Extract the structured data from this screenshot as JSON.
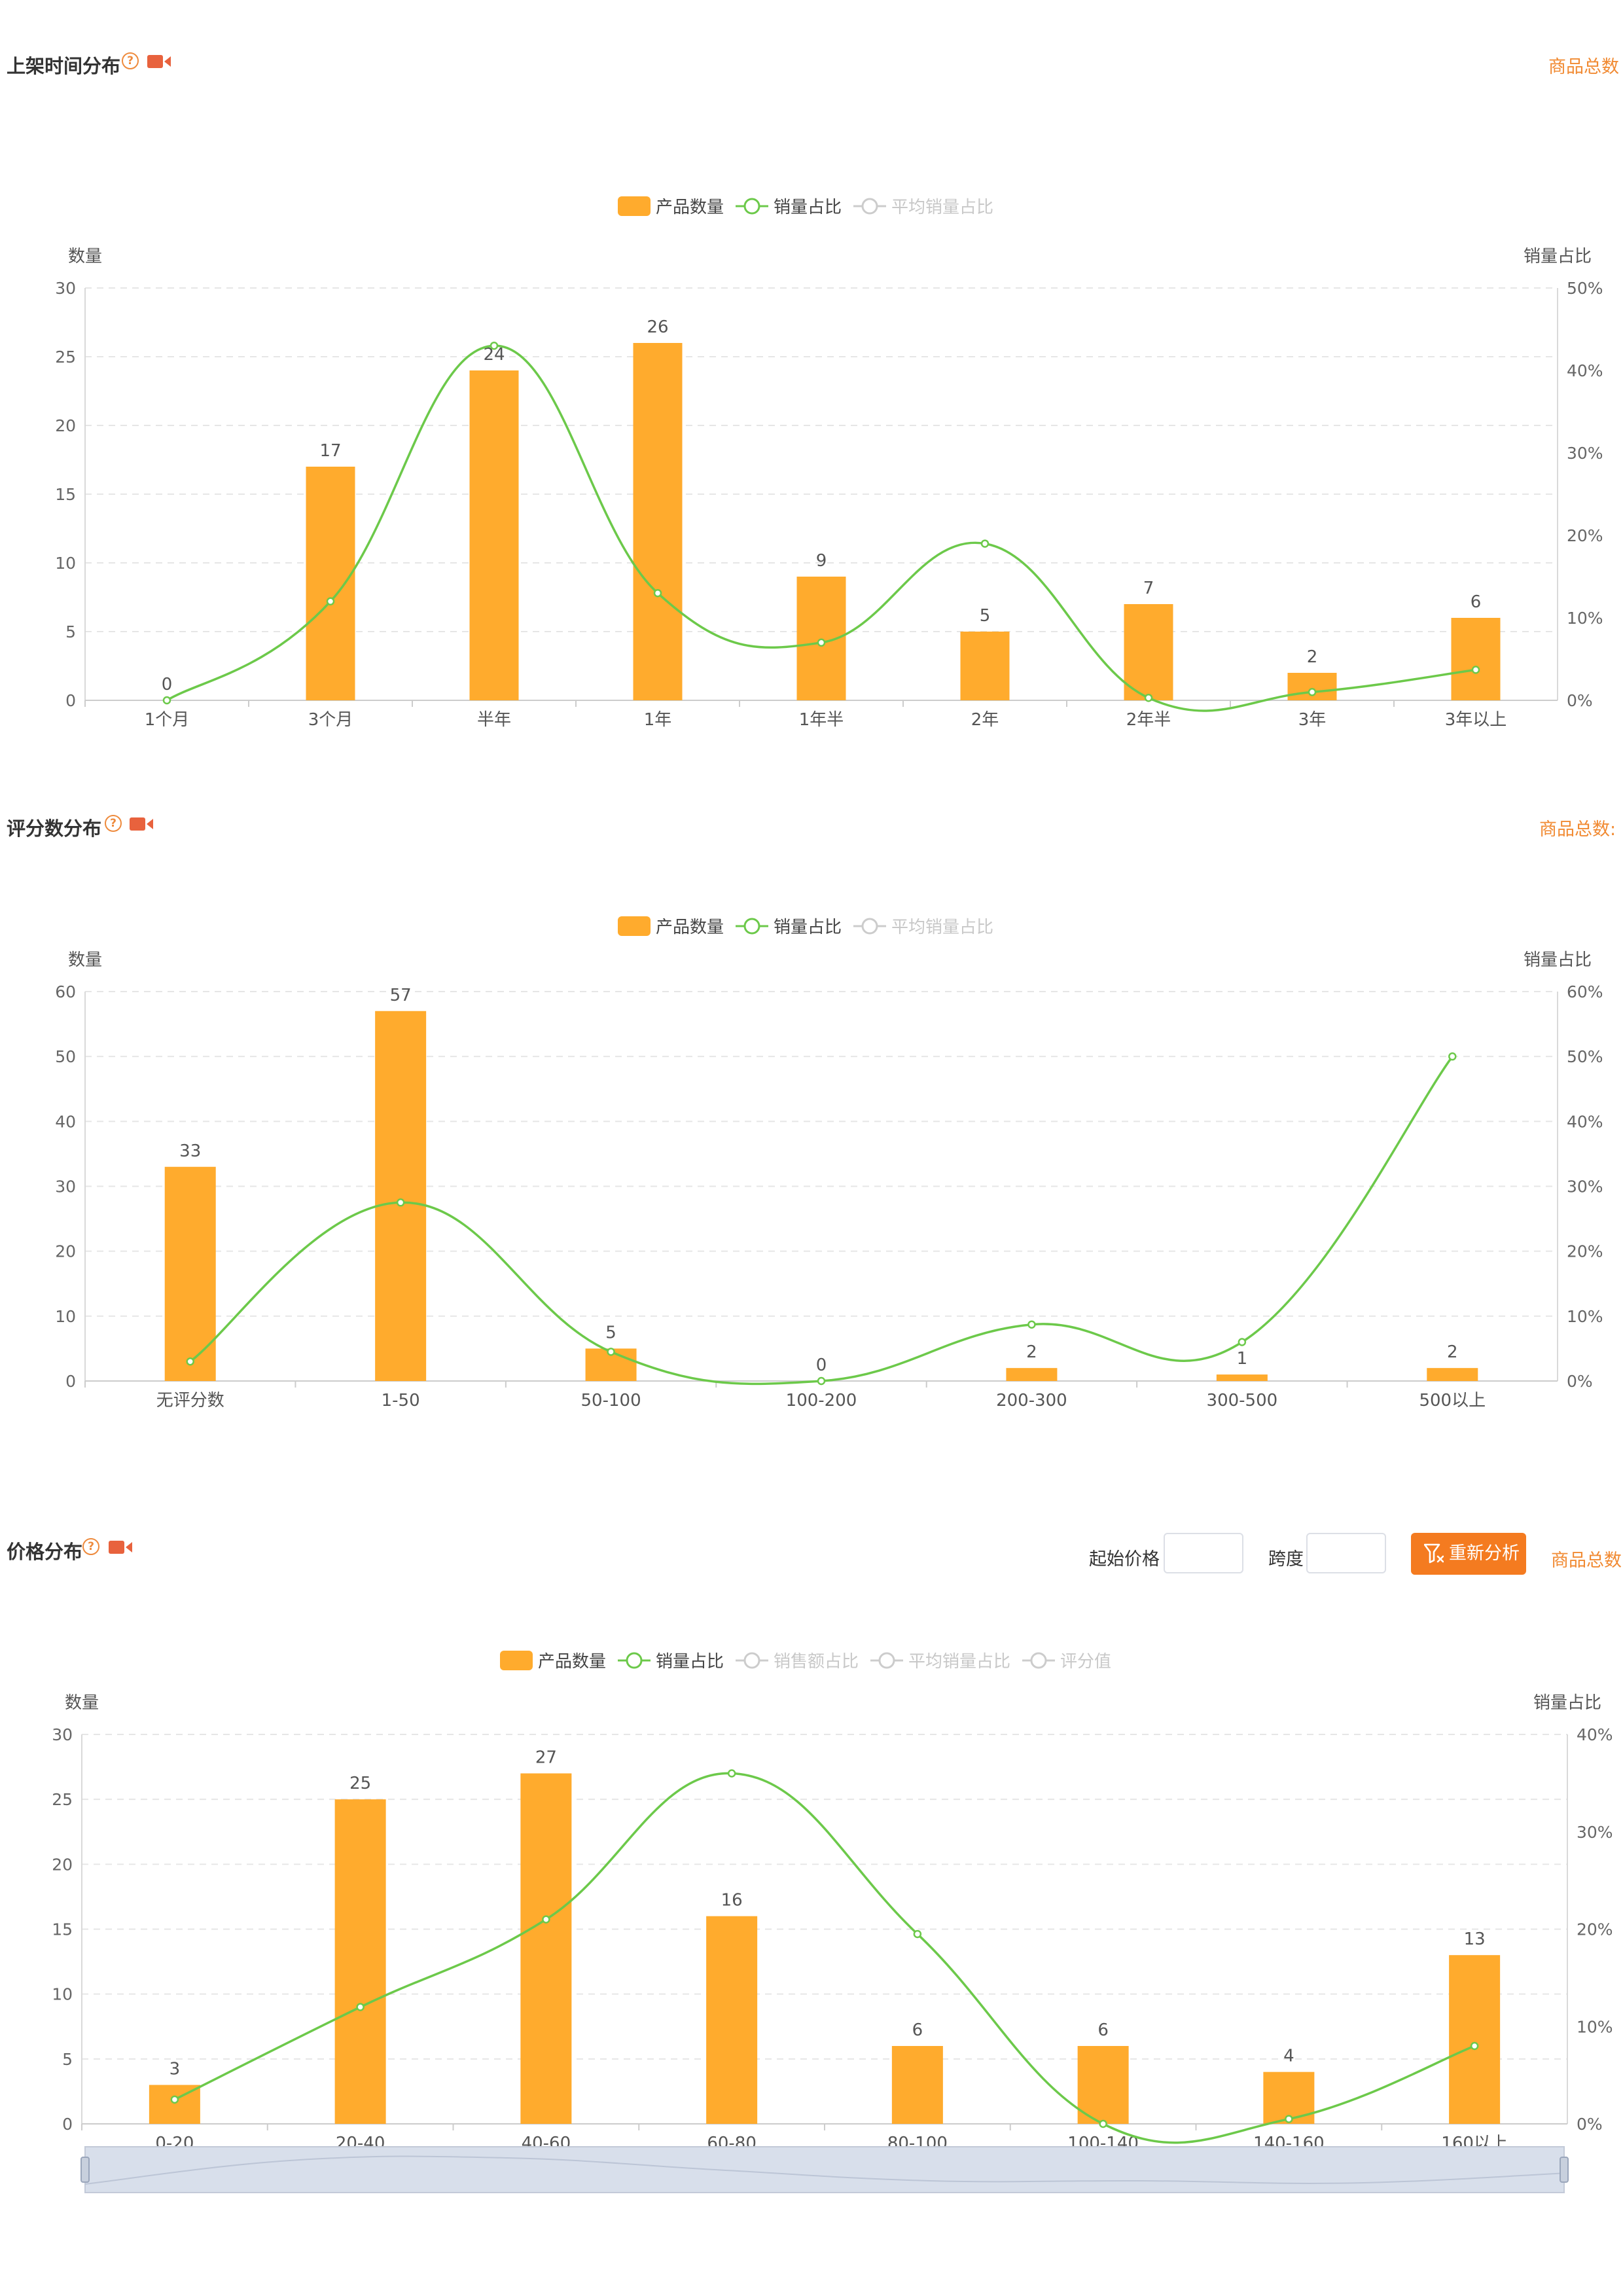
{
  "panels": [
    {
      "title": "上架时间分布",
      "total_label": "商品总数"
    },
    {
      "title": "评分数分布",
      "total_label": "商品总数:"
    },
    {
      "title": "价格分布",
      "total_label": "商品总数",
      "controls": {
        "start_price_label": "起始价格",
        "start_price_value": "",
        "span_label": "跨度",
        "span_value": "",
        "reanalyze_label": "重新分析"
      }
    }
  ],
  "chart_data": [
    {
      "type": "bar",
      "categories": [
        "1个月",
        "3个月",
        "半年",
        "1年",
        "1年半",
        "2年",
        "2年半",
        "3年",
        "3年以上"
      ],
      "series": [
        {
          "name": "产品数量",
          "type": "bar",
          "axis": "left",
          "values": [
            0,
            17,
            24,
            26,
            9,
            5,
            7,
            2,
            6
          ]
        },
        {
          "name": "销量占比",
          "type": "line",
          "axis": "right",
          "values": [
            0,
            12,
            43,
            13,
            7,
            19,
            0.3,
            1,
            3.7
          ]
        }
      ],
      "legend": [
        {
          "name": "产品数量",
          "active": true
        },
        {
          "name": "销量占比",
          "active": true
        },
        {
          "name": "平均销量占比",
          "active": false
        }
      ],
      "ylabel_left": "数量",
      "ylabel_right": "销量占比",
      "ylim_left": [
        0,
        30
      ],
      "ylim_right": [
        0,
        50
      ],
      "yticks_left": [
        "0",
        "5",
        "10",
        "15",
        "20",
        "25",
        "30"
      ],
      "yticks_right": [
        "0%",
        "10%",
        "20%",
        "30%",
        "40%",
        "50%"
      ],
      "grid": true,
      "legend_position": "top-center",
      "colors": {
        "bar": "#ffab2d",
        "line": "#6cc94a",
        "inactive": "#cccccc"
      }
    },
    {
      "type": "bar",
      "categories": [
        "无评分数",
        "1-50",
        "50-100",
        "100-200",
        "200-300",
        "300-500",
        "500以上"
      ],
      "series": [
        {
          "name": "产品数量",
          "type": "bar",
          "axis": "left",
          "values": [
            33,
            57,
            5,
            0,
            2,
            1,
            2
          ]
        },
        {
          "name": "销量占比",
          "type": "line",
          "axis": "right",
          "values": [
            3,
            27.5,
            4.5,
            0,
            8.7,
            6,
            50
          ]
        }
      ],
      "legend": [
        {
          "name": "产品数量",
          "active": true
        },
        {
          "name": "销量占比",
          "active": true
        },
        {
          "name": "平均销量占比",
          "active": false
        }
      ],
      "ylabel_left": "数量",
      "ylabel_right": "销量占比",
      "ylim_left": [
        0,
        60
      ],
      "ylim_right": [
        0,
        60
      ],
      "yticks_left": [
        "0",
        "10",
        "20",
        "30",
        "40",
        "50",
        "60"
      ],
      "yticks_right": [
        "0%",
        "10%",
        "20%",
        "30%",
        "40%",
        "50%",
        "60%"
      ],
      "grid": true,
      "legend_position": "top-center",
      "colors": {
        "bar": "#ffab2d",
        "line": "#6cc94a",
        "inactive": "#cccccc"
      }
    },
    {
      "type": "bar",
      "categories": [
        "0-20",
        "20-40",
        "40-60",
        "60-80",
        "80-100",
        "100-140",
        "140-160",
        "160以上"
      ],
      "series": [
        {
          "name": "产品数量",
          "type": "bar",
          "axis": "left",
          "values": [
            3,
            25,
            27,
            16,
            6,
            6,
            4,
            13
          ]
        },
        {
          "name": "销量占比",
          "type": "line",
          "axis": "right",
          "values": [
            2.5,
            12,
            21,
            36,
            19.5,
            0,
            0.5,
            8
          ]
        }
      ],
      "legend": [
        {
          "name": "产品数量",
          "active": true
        },
        {
          "name": "销量占比",
          "active": true
        },
        {
          "name": "销售额占比",
          "active": false
        },
        {
          "name": "平均销量占比",
          "active": false
        },
        {
          "name": "评分值",
          "active": false
        }
      ],
      "ylabel_left": "数量",
      "ylabel_right": "销量占比",
      "ylim_left": [
        0,
        30
      ],
      "ylim_right": [
        0,
        40
      ],
      "yticks_left": [
        "0",
        "5",
        "10",
        "15",
        "20",
        "25",
        "30"
      ],
      "yticks_right": [
        "0%",
        "10%",
        "20%",
        "30%",
        "40%"
      ],
      "grid": true,
      "legend_position": "top-center",
      "data_zoom": true,
      "colors": {
        "bar": "#ffab2d",
        "line": "#6cc94a",
        "inactive": "#cccccc"
      }
    }
  ]
}
